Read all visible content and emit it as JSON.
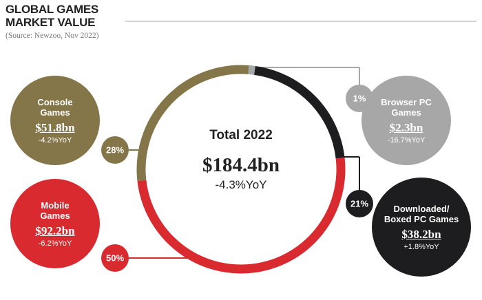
{
  "chart_data": {
    "type": "donut",
    "title": "GLOBAL GAMES MARKET VALUE",
    "subtitle": "(Source: Newzoo, Nov 2022)",
    "center_title": "Total 2022",
    "center_value": "$184.4bn",
    "center_change": "-4.3%YoY",
    "categories": [
      "Browser PC Games",
      "Downloaded/ Boxed PC Games",
      "Mobile Games",
      "Console Games"
    ],
    "values": [
      1,
      21,
      50,
      28
    ],
    "value_labels": [
      "1%",
      "21%",
      "50%",
      "28%"
    ],
    "amounts": [
      "$2.3bn",
      "$38.2bn",
      "$92.2bn",
      "$51.8bn"
    ],
    "changes": [
      "-16.7%YoY",
      "+1.8%YoY",
      "-6.2%YoY",
      "-4.2%YoY"
    ],
    "colors": [
      "#a8a7a7",
      "#1d1d1f",
      "#d92a30",
      "#85764a"
    ]
  }
}
